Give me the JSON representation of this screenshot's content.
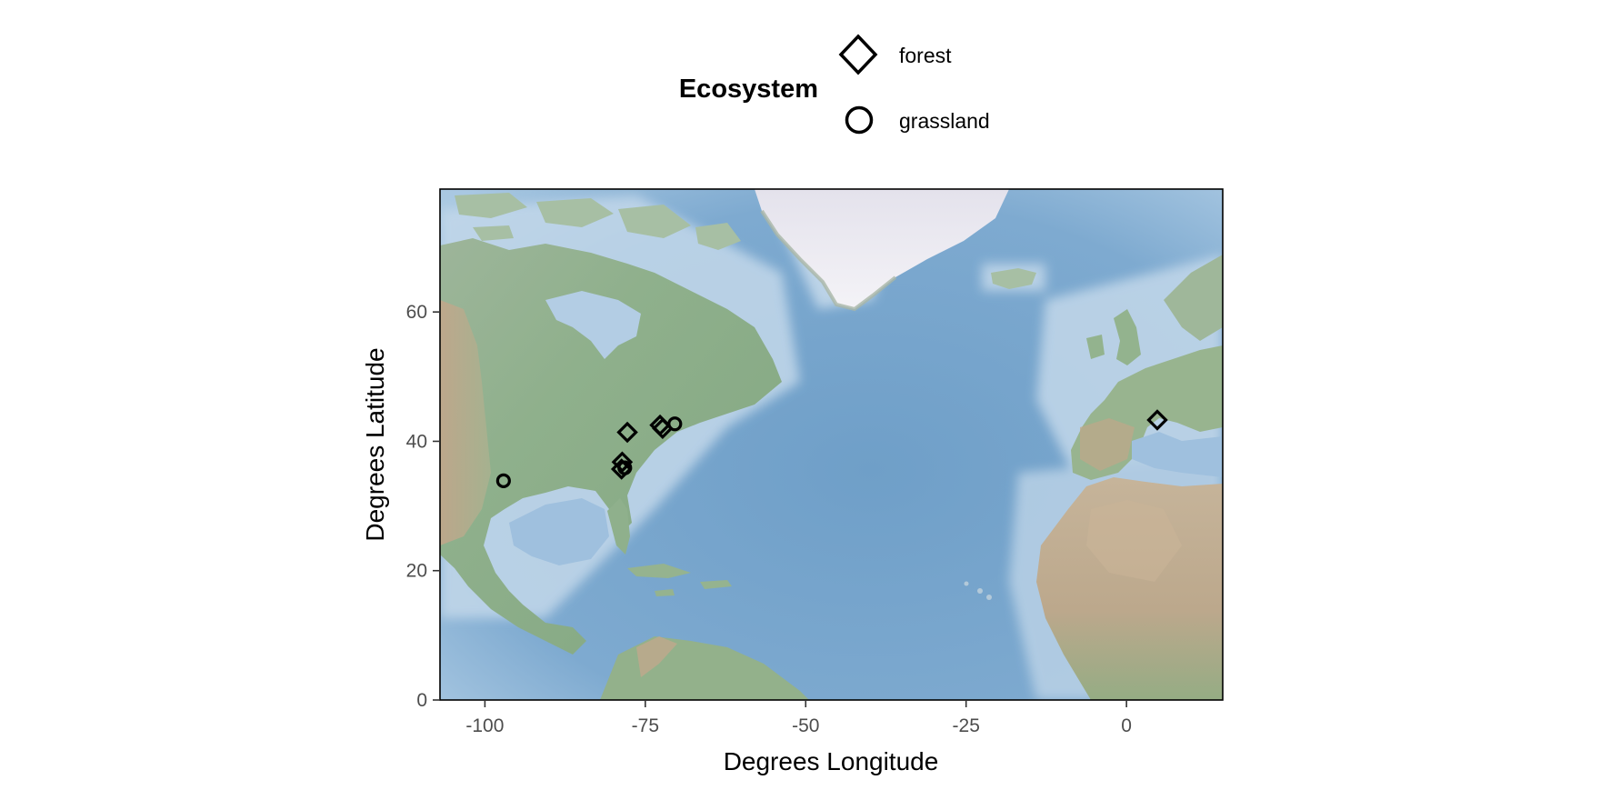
{
  "chart_data": {
    "type": "scatter",
    "background": "shaded relief map of the North Atlantic",
    "xlabel": "Degrees Longitude",
    "ylabel": "Degrees Latitude",
    "xlim": [
      -107,
      15
    ],
    "ylim": [
      0,
      79
    ],
    "x_ticks": [
      -100,
      -75,
      -50,
      -25,
      0
    ],
    "x_tick_labels": [
      "-100",
      "-75",
      "-50",
      "-25",
      "0"
    ],
    "y_ticks": [
      0,
      20,
      40,
      60
    ],
    "y_tick_labels": [
      "0",
      "20",
      "40",
      "60"
    ],
    "legend": {
      "title": "Ecosystem",
      "position": "top",
      "entries": [
        {
          "label": "forest",
          "shape": "diamond"
        },
        {
          "label": "grassland",
          "shape": "circle"
        }
      ]
    },
    "series": [
      {
        "name": "forest",
        "shape": "diamond",
        "points": [
          {
            "x": -77.8,
            "y": 41.4
          },
          {
            "x": -72.7,
            "y": 42.5
          },
          {
            "x": -72.3,
            "y": 42.0
          },
          {
            "x": -78.6,
            "y": 36.8
          },
          {
            "x": -78.7,
            "y": 35.7
          },
          {
            "x": 4.8,
            "y": 43.3
          }
        ]
      },
      {
        "name": "grassland",
        "shape": "circle",
        "points": [
          {
            "x": -97.1,
            "y": 33.9
          },
          {
            "x": -70.4,
            "y": 42.7
          },
          {
            "x": -78.2,
            "y": 35.9
          }
        ]
      }
    ],
    "colors": {
      "marker_stroke": "#000000",
      "ocean_deep": "#6f9fc8",
      "ocean_shallow": "#c3d8ea",
      "land_low": "#8fb08c",
      "land_high": "#b8a98a",
      "ice": "#eceaf2"
    }
  }
}
